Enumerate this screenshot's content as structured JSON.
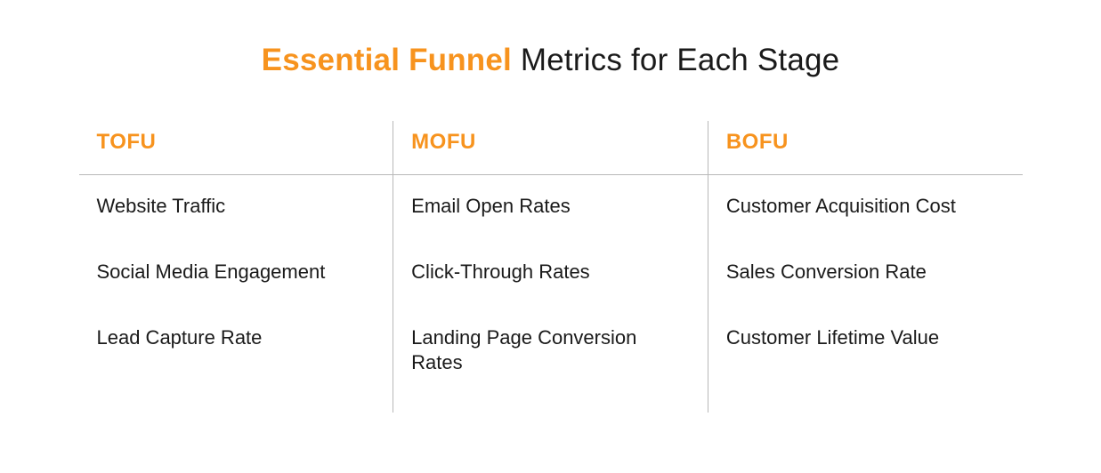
{
  "title": {
    "accent": "Essential Funnel",
    "rest": " Metrics for Each Stage",
    "accent_color": "#f7931e",
    "rest_color": "#1a1a1a",
    "fontsize": 35
  },
  "divider_color": "#b9b9b9",
  "background_color": "#ffffff",
  "columns": [
    {
      "header": "TOFU",
      "header_color": "#f7931e",
      "items": [
        "Website Traffic",
        "Social Media Engagement",
        "Lead Capture Rate"
      ]
    },
    {
      "header": "MOFU",
      "header_color": "#f7931e",
      "items": [
        "Email Open Rates",
        "Click-Through Rates",
        "Landing Page Conversion Rates"
      ]
    },
    {
      "header": "BOFU",
      "header_color": "#f7931e",
      "items": [
        "Customer Acquisition Cost",
        "Sales Conversion Rate",
        "Customer Lifetime Value"
      ]
    }
  ],
  "item_fontsize": 22,
  "header_fontsize": 24
}
